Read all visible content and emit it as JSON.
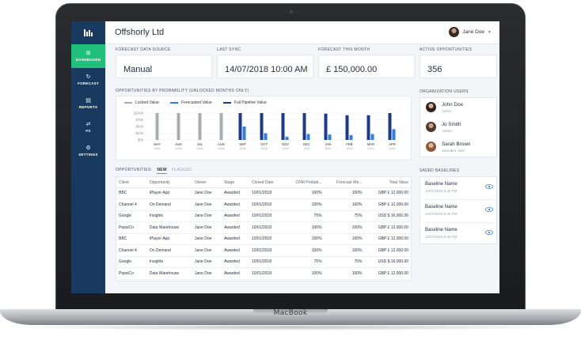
{
  "device": {
    "brand": "MacBook"
  },
  "app": {
    "title": "Offshorly Ltd"
  },
  "user": {
    "name": "Jane Doe"
  },
  "nav": [
    {
      "label": "DASHBOARD",
      "icon": "dashboard-icon",
      "glyph": "⊞",
      "active": true
    },
    {
      "label": "FORECAST",
      "icon": "forecast-icon",
      "glyph": "↻",
      "active": false
    },
    {
      "label": "REPORTS",
      "icon": "reports-icon",
      "glyph": "▤",
      "active": false
    },
    {
      "label": "FX",
      "icon": "fx-icon",
      "glyph": "⇄",
      "active": false
    },
    {
      "label": "SETTINGS",
      "icon": "settings-icon",
      "glyph": "⚙",
      "active": false
    }
  ],
  "kpis": [
    {
      "label": "FORECAST DATA SOURCE",
      "value": "Manual"
    },
    {
      "label": "LAST SYNC",
      "value": "14/07/2018 10:00 AM"
    },
    {
      "label": "FORECAST THIS MONTH",
      "value": "£ 150,000.00"
    },
    {
      "label": "ACTIVE OPPORTUNITIES",
      "value": "356"
    }
  ],
  "chart_section": {
    "title": "OPPORTUNITIES BY PROBABILITY (UNLOCKED MONTHS ONLY)"
  },
  "colors": {
    "locked": "#a8acb1",
    "forecasted": "#2f7de1",
    "pipeline": "#1b3a8c",
    "accent": "#1fc07a",
    "sidebar": "#173a5e"
  },
  "chart_data": {
    "type": "bar",
    "categories": [
      "MAY\n2018",
      "JUN\n2018",
      "JUL\n2018",
      "AUG\n2018",
      "SEP\n2018",
      "OCT\n2018",
      "NOV\n2018",
      "DEC\n2018",
      "JAN\n2019",
      "FEB\n2019",
      "MAR\n2019",
      "APR\n2019"
    ],
    "category_labels": [
      [
        "MAY",
        "2018"
      ],
      [
        "JUN",
        "2018"
      ],
      [
        "JUL",
        "2018"
      ],
      [
        "AUG",
        "2018"
      ],
      [
        "SEP",
        "2018"
      ],
      [
        "OCT",
        "2018"
      ],
      [
        "NOV",
        "2018"
      ],
      [
        "DEC",
        "2018"
      ],
      [
        "JAN",
        "2019"
      ],
      [
        "FEB",
        "2019"
      ],
      [
        "MAR",
        "2019"
      ],
      [
        "APR",
        "2019"
      ]
    ],
    "series": [
      {
        "name": "Locked Value",
        "values": [
          100,
          100,
          100,
          100,
          0,
          0,
          0,
          0,
          0,
          0,
          0,
          0
        ]
      },
      {
        "name": "Forecasted Value",
        "values": [
          0,
          0,
          0,
          0,
          50,
          25,
          12,
          22,
          20,
          18,
          22,
          40
        ]
      },
      {
        "name": "Full Pipeline Value",
        "values": [
          0,
          0,
          0,
          0,
          100,
          100,
          100,
          100,
          98,
          92,
          92,
          100
        ]
      }
    ],
    "yticks": [
      "$100k",
      "$75k",
      "$50k",
      "$25k",
      "$0k"
    ],
    "ylim": [
      0,
      100
    ],
    "grid": true,
    "legend": "top-left"
  },
  "table": {
    "tabs": {
      "label": "OPPORTUNITIES:",
      "new": "NEW",
      "flagged": "FLAGGED"
    },
    "columns": [
      "Client",
      "Opportunity",
      "Owner",
      "Stage",
      "Closed Date",
      "CRM Probab...",
      "Forecast We...",
      "Total Value"
    ],
    "rows": [
      [
        "BBC",
        "iPlayer App",
        "Jane Doe",
        "Awarded",
        "10/01/2018",
        "100%",
        "100%",
        "GBP £ 12,000.00"
      ],
      [
        "Channel 4",
        "On Demand",
        "Jane Doe",
        "Awarded",
        "10/01/2018",
        "100%",
        "100%",
        "GBP £ 12,000.00"
      ],
      [
        "Google",
        "Insights",
        "Jane Doe",
        "Awarded",
        "10/01/2018",
        "75%",
        "75%",
        "USD $ 16,000.00"
      ],
      [
        "PepsiCo",
        "Data Warehouse",
        "Jane Doe",
        "Awarded",
        "10/01/2018",
        "100%",
        "100%",
        "GBP £ 12,000.00"
      ],
      [
        "BBC",
        "iPlayer App",
        "Jane Doe",
        "Awarded",
        "10/01/2018",
        "100%",
        "100%",
        "GBP £ 12,000.00"
      ],
      [
        "Channel 4",
        "On Demand",
        "Jane Doe",
        "Awarded",
        "10/01/2018",
        "100%",
        "100%",
        "GBP £ 12,000.00"
      ],
      [
        "Google",
        "Insights",
        "Jane Doe",
        "Awarded",
        "10/01/2018",
        "75%",
        "75%",
        "USD $ 16,000.00"
      ],
      [
        "PepsiCo",
        "Data Warehouse",
        "Jane Doe",
        "Awarded",
        "10/01/2018",
        "100%",
        "100%",
        "GBP £ 12,000.00"
      ]
    ]
  },
  "org_users": {
    "title": "ORGANIZATION USERS",
    "users": [
      {
        "name": "John Doe",
        "role": "Admin"
      },
      {
        "name": "Jo Smith",
        "role": "Admin"
      },
      {
        "name": "Sarah Brown",
        "role": "Standard User"
      }
    ]
  },
  "baselines": {
    "title": "SAVED BASELINES",
    "items": [
      {
        "name": "Baseline Name",
        "meta": "12/07/2018 6:46 PM"
      },
      {
        "name": "Baseline Name",
        "meta": "12/07/2018 6:46 PM"
      },
      {
        "name": "Baseline Name",
        "meta": "12/07/2018 6:46 PM"
      }
    ]
  }
}
